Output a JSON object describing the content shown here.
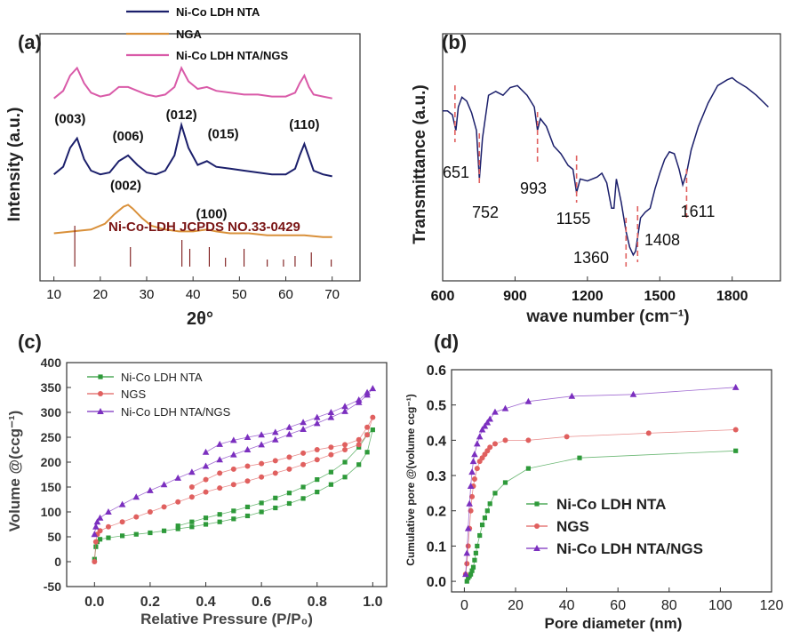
{
  "chart_data": [
    {
      "panel": "(a)",
      "type": "line",
      "xlabel": "2θ°",
      "ylabel": "Intensity (a.u.)",
      "xlim": [
        7,
        76
      ],
      "xticks": [
        10,
        20,
        30,
        40,
        50,
        60,
        70
      ],
      "series": [
        {
          "name": "Ni-Co LDH NTA",
          "color": "#1b1f6b",
          "x": [
            10,
            12,
            13.5,
            15,
            16.5,
            18,
            20,
            22,
            24,
            26,
            28,
            30,
            32,
            34,
            36,
            37.5,
            39,
            41,
            43,
            45,
            48,
            51,
            54,
            57,
            60,
            62,
            63,
            64,
            65,
            66,
            68,
            70
          ],
          "y": [
            0.26,
            0.3,
            0.4,
            0.45,
            0.34,
            0.28,
            0.26,
            0.27,
            0.33,
            0.36,
            0.31,
            0.27,
            0.26,
            0.28,
            0.36,
            0.52,
            0.4,
            0.31,
            0.33,
            0.3,
            0.29,
            0.28,
            0.27,
            0.26,
            0.26,
            0.29,
            0.36,
            0.42,
            0.35,
            0.28,
            0.26,
            0.25
          ]
        },
        {
          "name": "NGA",
          "color": "#d9903a",
          "x": [
            10,
            14,
            18,
            21,
            23,
            25,
            26,
            27,
            29,
            31,
            34,
            37,
            40,
            43,
            45,
            48,
            52,
            56,
            60,
            64,
            68,
            70
          ],
          "y": [
            -0.05,
            -0.04,
            -0.03,
            0.0,
            0.05,
            0.09,
            0.1,
            0.08,
            0.03,
            -0.01,
            -0.03,
            -0.04,
            -0.04,
            -0.03,
            -0.04,
            -0.05,
            -0.05,
            -0.06,
            -0.06,
            -0.06,
            -0.07,
            -0.07
          ]
        },
        {
          "name": "Ni-Co LDH NTA/NGS",
          "color": "#d95aa8",
          "x": [
            10,
            12,
            13.5,
            15,
            16.5,
            18,
            20,
            22,
            24,
            26,
            28,
            30,
            32,
            34,
            36,
            37.5,
            39,
            41,
            43,
            45,
            48,
            51,
            54,
            57,
            60,
            62,
            63,
            64,
            65,
            66,
            68,
            70
          ],
          "y": [
            0.66,
            0.7,
            0.78,
            0.82,
            0.74,
            0.69,
            0.67,
            0.68,
            0.72,
            0.72,
            0.7,
            0.68,
            0.67,
            0.68,
            0.72,
            0.82,
            0.75,
            0.71,
            0.72,
            0.7,
            0.69,
            0.68,
            0.68,
            0.67,
            0.67,
            0.69,
            0.74,
            0.78,
            0.72,
            0.68,
            0.67,
            0.66
          ]
        }
      ],
      "peak_labels": [
        {
          "text": "(003)",
          "x": 13.5,
          "y": 0.53
        },
        {
          "text": "(006)",
          "x": 26,
          "y": 0.44
        },
        {
          "text": "(012)",
          "x": 37.5,
          "y": 0.55
        },
        {
          "text": "(015)",
          "x": 46.5,
          "y": 0.45
        },
        {
          "text": "(110)",
          "x": 64,
          "y": 0.5
        },
        {
          "text": "(002)",
          "x": 25.5,
          "y": 0.18
        },
        {
          "text": "(100)",
          "x": 44,
          "y": 0.03
        }
      ],
      "reference_label": "Ni-Co-LDH JCPDS NO.33-0429",
      "reference_lines": [
        {
          "x": 14.5,
          "h": 0.23
        },
        {
          "x": 26.5,
          "h": 0.11
        },
        {
          "x": 37.6,
          "h": 0.15
        },
        {
          "x": 39.3,
          "h": 0.1
        },
        {
          "x": 43.5,
          "h": 0.11
        },
        {
          "x": 47.0,
          "h": 0.05
        },
        {
          "x": 51.0,
          "h": 0.1
        },
        {
          "x": 56.0,
          "h": 0.04
        },
        {
          "x": 59.5,
          "h": 0.04
        },
        {
          "x": 62.0,
          "h": 0.06
        },
        {
          "x": 65.5,
          "h": 0.08
        },
        {
          "x": 69.8,
          "h": 0.04
        }
      ]
    },
    {
      "panel": "(b)",
      "type": "line",
      "xlabel": "wave number (cm⁻¹)",
      "ylabel": "Transmittance (a.u.)",
      "xlim": [
        600,
        2000
      ],
      "xticks": [
        600,
        900,
        1200,
        1500,
        1800
      ],
      "series": [
        {
          "name": "",
          "color": "#1b1f6b",
          "x": [
            600,
            620,
            640,
            655,
            665,
            680,
            700,
            720,
            740,
            752,
            765,
            790,
            820,
            850,
            880,
            910,
            950,
            980,
            993,
            1005,
            1030,
            1060,
            1090,
            1120,
            1140,
            1155,
            1170,
            1200,
            1240,
            1260,
            1280,
            1300,
            1310,
            1320,
            1340,
            1360,
            1375,
            1390,
            1400,
            1408,
            1420,
            1440,
            1460,
            1480,
            1500,
            1520,
            1540,
            1560,
            1580,
            1595,
            1611,
            1630,
            1660,
            1700,
            1740,
            1780,
            1800,
            1820,
            1860,
            1900,
            1950
          ],
          "y": [
            0.8,
            0.8,
            0.78,
            0.7,
            0.82,
            0.87,
            0.85,
            0.79,
            0.7,
            0.45,
            0.66,
            0.88,
            0.9,
            0.88,
            0.92,
            0.93,
            0.88,
            0.82,
            0.7,
            0.76,
            0.72,
            0.62,
            0.58,
            0.52,
            0.5,
            0.38,
            0.45,
            0.44,
            0.46,
            0.48,
            0.43,
            0.3,
            0.3,
            0.45,
            0.33,
            0.18,
            0.1,
            0.06,
            0.08,
            0.15,
            0.25,
            0.28,
            0.3,
            0.4,
            0.48,
            0.55,
            0.59,
            0.58,
            0.5,
            0.42,
            0.48,
            0.6,
            0.72,
            0.84,
            0.93,
            0.96,
            0.97,
            0.95,
            0.92,
            0.88,
            0.82
          ]
        }
      ],
      "markers": [
        {
          "x": 651,
          "label": "651"
        },
        {
          "x": 752,
          "label": "752"
        },
        {
          "x": 993,
          "label": "993"
        },
        {
          "x": 1155,
          "label": "1155"
        },
        {
          "x": 1360,
          "label": "1360"
        },
        {
          "x": 1408,
          "label": "1408"
        },
        {
          "x": 1611,
          "label": "1611"
        }
      ]
    },
    {
      "panel": "(c)",
      "type": "scatter",
      "xlabel": "Relative Pressure (P/P₀)",
      "ylabel": "Volume @(ccg⁻¹)",
      "xlim": [
        -0.1,
        1.05
      ],
      "ylim": [
        -50,
        400
      ],
      "xticks": [
        0.0,
        0.2,
        0.4,
        0.6,
        0.8,
        1.0
      ],
      "yticks": [
        -50,
        0,
        50,
        100,
        150,
        200,
        250,
        300,
        350,
        400
      ],
      "series": [
        {
          "name": "Ni-Co LDH NTA",
          "color": "#2e9a3a",
          "marker": "square",
          "x": [
            0.0,
            0.005,
            0.01,
            0.02,
            0.05,
            0.1,
            0.15,
            0.2,
            0.25,
            0.3,
            0.35,
            0.4,
            0.45,
            0.5,
            0.55,
            0.6,
            0.65,
            0.7,
            0.75,
            0.8,
            0.85,
            0.9,
            0.95,
            0.98,
            1.0,
            0.98,
            0.95,
            0.9,
            0.85,
            0.8,
            0.75,
            0.7,
            0.65,
            0.6,
            0.55,
            0.5,
            0.45,
            0.4,
            0.35,
            0.3
          ],
          "y": [
            5,
            30,
            40,
            45,
            48,
            52,
            55,
            58,
            62,
            66,
            70,
            75,
            80,
            86,
            92,
            100,
            108,
            117,
            127,
            140,
            155,
            170,
            195,
            220,
            265,
            255,
            230,
            200,
            180,
            165,
            150,
            138,
            128,
            118,
            110,
            102,
            95,
            88,
            80,
            72
          ]
        },
        {
          "name": "NGS",
          "color": "#e0605f",
          "marker": "circle",
          "x": [
            0.0,
            0.005,
            0.01,
            0.02,
            0.05,
            0.1,
            0.15,
            0.2,
            0.25,
            0.3,
            0.35,
            0.4,
            0.45,
            0.5,
            0.55,
            0.6,
            0.65,
            0.7,
            0.75,
            0.8,
            0.85,
            0.9,
            0.95,
            0.98,
            1.0,
            0.98,
            0.95,
            0.9,
            0.85,
            0.8,
            0.75,
            0.7,
            0.65,
            0.6,
            0.55,
            0.5,
            0.45,
            0.4,
            0.35
          ],
          "y": [
            0,
            40,
            55,
            62,
            70,
            80,
            90,
            100,
            110,
            120,
            130,
            140,
            148,
            155,
            162,
            170,
            178,
            186,
            195,
            205,
            215,
            225,
            235,
            255,
            290,
            270,
            245,
            235,
            230,
            225,
            218,
            210,
            203,
            197,
            192,
            186,
            178,
            165,
            150
          ]
        },
        {
          "name": "Ni-Co LDH NTA/NGS",
          "color": "#7b2fbf",
          "marker": "triangle",
          "x": [
            0.0,
            0.005,
            0.01,
            0.02,
            0.05,
            0.1,
            0.15,
            0.2,
            0.25,
            0.3,
            0.35,
            0.4,
            0.45,
            0.5,
            0.55,
            0.6,
            0.65,
            0.7,
            0.75,
            0.8,
            0.85,
            0.9,
            0.95,
            0.98,
            1.0,
            0.98,
            0.95,
            0.9,
            0.85,
            0.8,
            0.75,
            0.7,
            0.65,
            0.6,
            0.55,
            0.5,
            0.45,
            0.4
          ],
          "y": [
            55,
            70,
            80,
            88,
            100,
            115,
            130,
            143,
            155,
            168,
            180,
            192,
            205,
            215,
            225,
            235,
            245,
            256,
            266,
            278,
            290,
            302,
            320,
            335,
            348,
            340,
            325,
            312,
            300,
            290,
            280,
            270,
            260,
            255,
            250,
            244,
            236,
            220
          ]
        }
      ]
    },
    {
      "panel": "(d)",
      "type": "scatter",
      "xlabel": "Pore diameter (nm)",
      "ylabel": "Cumulative pore @(volume ccg⁻¹)",
      "xlim": [
        -5,
        120
      ],
      "ylim": [
        -0.03,
        0.6
      ],
      "xticks": [
        0,
        20,
        40,
        60,
        80,
        100,
        120
      ],
      "yticks": [
        0.0,
        0.1,
        0.2,
        0.3,
        0.4,
        0.5,
        0.6
      ],
      "series": [
        {
          "name": "Ni-Co LDH NTA",
          "color": "#2e9a3a",
          "marker": "square",
          "x": [
            1,
            1.5,
            2,
            2.5,
            3,
            3.5,
            4,
            4.5,
            5,
            6,
            7,
            8,
            9,
            10,
            12,
            16,
            25,
            45,
            106
          ],
          "y": [
            0.0,
            0.01,
            0.015,
            0.02,
            0.03,
            0.04,
            0.06,
            0.08,
            0.1,
            0.13,
            0.16,
            0.18,
            0.2,
            0.22,
            0.25,
            0.28,
            0.32,
            0.35,
            0.37
          ]
        },
        {
          "name": "NGS",
          "color": "#e0605f",
          "marker": "circle",
          "x": [
            0.5,
            1,
            1.5,
            2,
            2.5,
            3,
            3.5,
            4,
            5,
            6,
            7,
            8,
            9,
            10,
            12,
            16,
            25,
            40,
            72,
            106
          ],
          "y": [
            0.02,
            0.05,
            0.1,
            0.15,
            0.2,
            0.24,
            0.27,
            0.29,
            0.32,
            0.34,
            0.35,
            0.36,
            0.37,
            0.38,
            0.39,
            0.4,
            0.4,
            0.41,
            0.42,
            0.43
          ]
        },
        {
          "name": "Ni-Co LDH NTA/NGS",
          "color": "#7b2fbf",
          "marker": "triangle",
          "x": [
            0.5,
            1,
            1.5,
            2,
            2.5,
            3,
            3.5,
            4,
            5,
            6,
            7,
            8,
            9,
            10,
            12,
            16,
            25,
            42,
            66,
            106
          ],
          "y": [
            0.02,
            0.08,
            0.15,
            0.22,
            0.27,
            0.31,
            0.34,
            0.36,
            0.39,
            0.41,
            0.43,
            0.44,
            0.45,
            0.46,
            0.48,
            0.49,
            0.51,
            0.525,
            0.53,
            0.55
          ]
        }
      ]
    }
  ]
}
